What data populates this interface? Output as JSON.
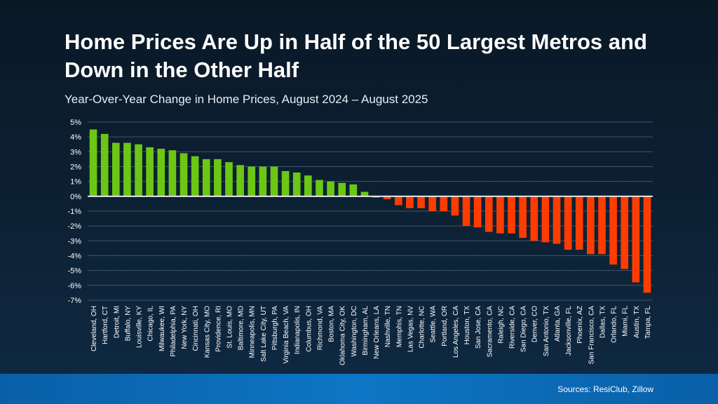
{
  "title": "Home Prices Are Up in Half of the 50 Largest Metros and Down in the Other Half",
  "subtitle": "Year-Over-Year Change in Home Prices, August 2024 – August 2025",
  "source": "Sources: ResiClub, Zillow",
  "colors": {
    "positive": "#6cc614",
    "negative": "#ff3c00",
    "zero_line": "#e6e6e6",
    "grid": "#3c566a"
  },
  "chart_data": {
    "type": "bar",
    "ylim": [
      -7,
      5
    ],
    "yticks": [
      "5%",
      "4%",
      "3%",
      "2%",
      "1%",
      "0%",
      "-1%",
      "-2%",
      "-3%",
      "-4%",
      "-5%",
      "-6%",
      "-7%"
    ],
    "grid": true,
    "unit": "%",
    "categories": [
      "Cleveland, OH",
      "Hartford, CT",
      "Detroit, MI",
      "Buffalo, NY",
      "Louisville, KY",
      "Chicago, IL",
      "Milwaukee, WI",
      "Philadelphia, PA",
      "New York, NY",
      "Cincinnati, OH",
      "Kansas City, MO",
      "Providence, RI",
      "St. Louis, MO",
      "Baltimore, MD",
      "Minneapolis, MN",
      "Salt Lake City, UT",
      "Pittsburgh, PA",
      "Virginia Beach, VA",
      "Indianapolis, IN",
      "Columbus, OH",
      "Richmond, VA",
      "Boston, MA",
      "Oklahoma City, OK",
      "Washington, DC",
      "Birmingham, AL",
      "New Orleans, LA",
      "Nashville, TN",
      "Memphis, TN",
      "Las Vegas, NV",
      "Charlotte, NC",
      "Seattle, WA",
      "Portland, OR",
      "Los Angeles, CA",
      "Houston, TX",
      "San Jose, CA",
      "Sacramento, CA",
      "Raleigh, NC",
      "Riverside, CA",
      "San Diego, CA",
      "Denver, CO",
      "San Antonio, TX",
      "Atlanta, GA",
      "Jacksonville, FL",
      "Phoenix, AZ",
      "San Francisco, CA",
      "Dallas, TX",
      "Orlando, FL",
      "Miami, FL",
      "Austin, TX",
      "Tampa, FL"
    ],
    "values": [
      4.5,
      4.2,
      3.6,
      3.6,
      3.5,
      3.3,
      3.2,
      3.1,
      2.9,
      2.7,
      2.5,
      2.5,
      2.3,
      2.1,
      2.0,
      2.0,
      2.0,
      1.7,
      1.6,
      1.4,
      1.1,
      1.0,
      0.9,
      0.8,
      0.3,
      -0.1,
      -0.2,
      -0.6,
      -0.8,
      -0.8,
      -1.0,
      -1.0,
      -1.3,
      -2.0,
      -2.1,
      -2.4,
      -2.5,
      -2.5,
      -2.8,
      -3.0,
      -3.1,
      -3.2,
      -3.6,
      -3.6,
      -3.9,
      -3.9,
      -4.6,
      -4.9,
      -5.8,
      -6.5
    ]
  }
}
